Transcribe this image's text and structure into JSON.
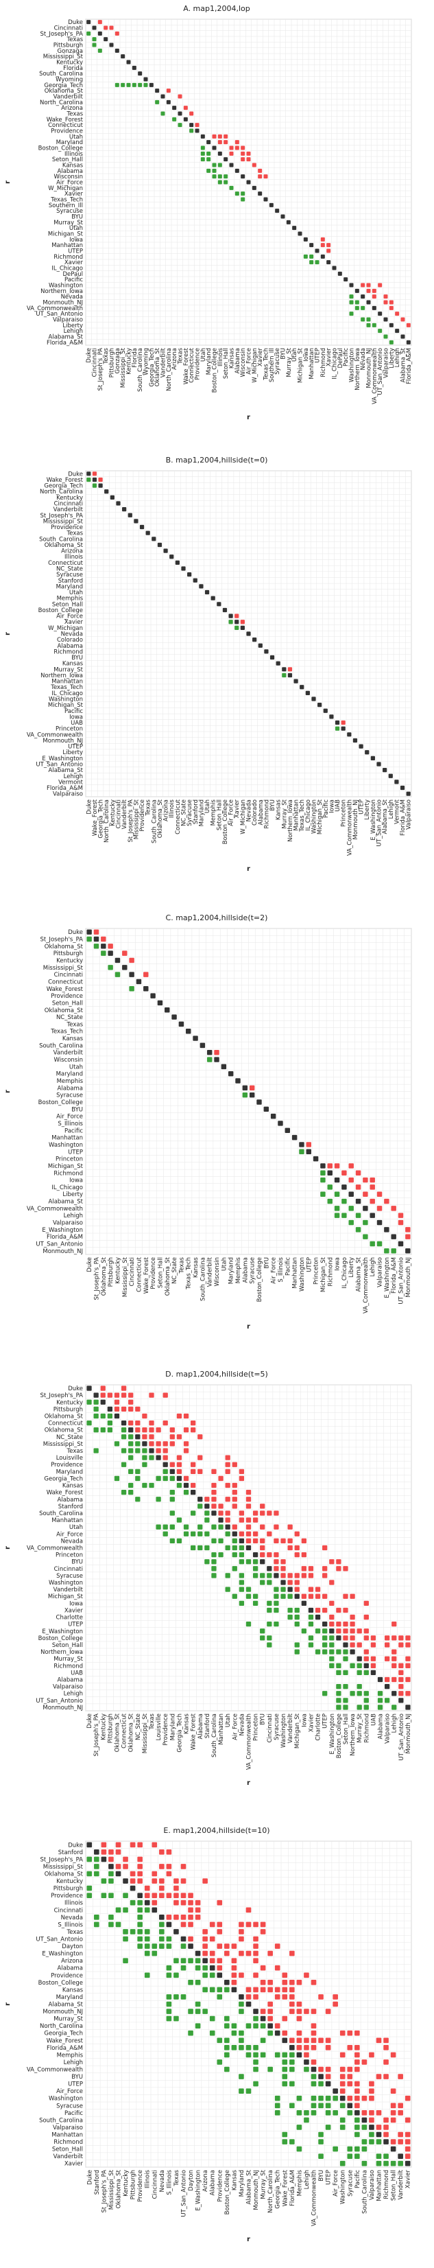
{
  "colors": {
    "diagonal": "#333333",
    "red": "#f24b4b",
    "green": "#3aa23a",
    "grid": "#e6e6e6",
    "frame": "#cccccc"
  },
  "chart_data": [
    {
      "type": "heatmap",
      "title": "A. map1,2004,lop",
      "xlabel": "r",
      "ylabel": "r",
      "teams": [
        "Duke",
        "Cincinnati",
        "St_Joseph's_PA",
        "Texas",
        "Pittsburgh",
        "Gonzaga",
        "Mississippi_St",
        "Kentucky",
        "Florida",
        "South_Carolina",
        "Wyoming",
        "Georgia_Tech",
        "Oklahoma_St",
        "Vanderbilt",
        "North_Carolina",
        "Arizona",
        "Texas",
        "Wake_Forest",
        "Connecticut",
        "Providence",
        "Utah",
        "Maryland",
        "Boston_College",
        "Illinois",
        "Seton_Hall",
        "Kansas",
        "Alabama",
        "Wisconsin",
        "Air_Force",
        "W_Michigan",
        "Xavier",
        "Texas_Tech",
        "Southern_Ill",
        "Syracuse",
        "BYU",
        "Murray_St",
        "Utah",
        "Michigan_St",
        "Iowa",
        "Manhattan",
        "UTEP",
        "Richmond",
        "Xavier",
        "IL_Chicago",
        "DePaul",
        "Pacific",
        "Washington",
        "Northern_Iowa",
        "Nevada",
        "Monmouth_NJ",
        "VA_Commonwealth",
        "UT_San_Antonio",
        "Valparaiso",
        "Liberty",
        "Lehigh",
        "Alabama_St",
        "Florida_A&M"
      ],
      "red_pairs": [
        [
          0,
          2
        ],
        [
          1,
          3
        ],
        [
          1,
          4
        ],
        [
          2,
          5
        ],
        [
          12,
          14
        ],
        [
          13,
          16
        ],
        [
          15,
          17
        ],
        [
          16,
          18
        ],
        [
          18,
          19
        ],
        [
          20,
          22
        ],
        [
          20,
          23
        ],
        [
          20,
          24
        ],
        [
          21,
          23
        ],
        [
          21,
          24
        ],
        [
          21,
          26
        ],
        [
          22,
          25
        ],
        [
          22,
          26
        ],
        [
          22,
          27
        ],
        [
          23,
          25
        ],
        [
          23,
          27
        ],
        [
          23,
          28
        ],
        [
          24,
          27
        ],
        [
          24,
          28
        ],
        [
          25,
          29
        ],
        [
          26,
          30
        ],
        [
          27,
          30
        ],
        [
          27,
          31
        ],
        [
          38,
          41
        ],
        [
          39,
          41
        ],
        [
          39,
          42
        ],
        [
          40,
          42
        ],
        [
          46,
          48
        ],
        [
          46,
          49
        ],
        [
          46,
          51
        ],
        [
          47,
          49
        ],
        [
          47,
          50
        ],
        [
          48,
          50
        ],
        [
          48,
          52
        ],
        [
          49,
          52
        ],
        [
          49,
          53
        ],
        [
          50,
          53
        ],
        [
          51,
          54
        ],
        [
          52,
          55
        ],
        [
          53,
          56
        ]
      ],
      "green_pairs": [
        [
          2,
          0
        ],
        [
          3,
          1
        ],
        [
          4,
          1
        ],
        [
          5,
          2
        ],
        [
          14,
          12
        ],
        [
          16,
          13
        ],
        [
          17,
          15
        ],
        [
          18,
          16
        ],
        [
          19,
          18
        ],
        [
          22,
          20
        ],
        [
          23,
          20
        ],
        [
          24,
          20
        ],
        [
          23,
          21
        ],
        [
          24,
          21
        ],
        [
          26,
          21
        ],
        [
          25,
          22
        ],
        [
          26,
          22
        ],
        [
          27,
          22
        ],
        [
          25,
          23
        ],
        [
          27,
          23
        ],
        [
          28,
          23
        ],
        [
          27,
          24
        ],
        [
          28,
          24
        ],
        [
          29,
          25
        ],
        [
          30,
          26
        ],
        [
          30,
          27
        ],
        [
          31,
          27
        ],
        [
          41,
          38
        ],
        [
          41,
          39
        ],
        [
          42,
          39
        ],
        [
          42,
          40
        ],
        [
          48,
          46
        ],
        [
          49,
          46
        ],
        [
          51,
          46
        ],
        [
          49,
          47
        ],
        [
          50,
          47
        ],
        [
          50,
          48
        ],
        [
          52,
          48
        ],
        [
          52,
          49
        ],
        [
          53,
          49
        ],
        [
          53,
          50
        ],
        [
          54,
          51
        ],
        [
          55,
          52
        ],
        [
          56,
          53
        ],
        [
          11,
          5
        ],
        [
          11,
          6
        ],
        [
          11,
          7
        ],
        [
          11,
          8
        ],
        [
          11,
          9
        ],
        [
          11,
          10
        ]
      ]
    },
    {
      "type": "heatmap",
      "title": "B. map1,2004,hillside(t=0)",
      "xlabel": "r",
      "ylabel": "r",
      "teams": [
        "Duke",
        "Wake_Forest",
        "Georgia_Tech",
        "North_Carolina",
        "Kentucky",
        "Cincinnati",
        "Vanderbilt",
        "St_Joseph's_PA",
        "Mississippi_St",
        "Providence",
        "Texas",
        "South_Carolina",
        "Oklahoma_St",
        "Arizona",
        "Illinois",
        "Connecticut",
        "NC_State",
        "Syracuse",
        "Stanford",
        "Maryland",
        "Utah",
        "Memphis",
        "Seton_Hall",
        "Boston_College",
        "Air_Force",
        "Xavier",
        "W_Michigan",
        "Nevada",
        "Colorado",
        "Alabama",
        "Richmond",
        "BYU",
        "Kansas",
        "Murray_St",
        "Northern_Iowa",
        "Manhattan",
        "Texas_Tech",
        "IL_Chicago",
        "Washington",
        "Michigan_St",
        "Pacific",
        "Iowa",
        "UAB",
        "Princeton",
        "VA_Commonwealth",
        "Monmouth_NJ",
        "UTEP",
        "Liberty",
        "E_Washington",
        "UT_San_Antonio",
        "Alabama_St",
        "Lehigh",
        "Vermont",
        "Florida_A&M",
        "Valparaiso"
      ],
      "red_pairs": [
        [
          0,
          1
        ],
        [
          1,
          2
        ],
        [
          24,
          25
        ],
        [
          25,
          26
        ],
        [
          33,
          34
        ],
        [
          42,
          43
        ]
      ],
      "green_pairs": [
        [
          1,
          0
        ],
        [
          2,
          1
        ],
        [
          25,
          24
        ],
        [
          26,
          25
        ],
        [
          34,
          33
        ],
        [
          43,
          42
        ]
      ]
    },
    {
      "type": "heatmap",
      "title": "C. map1,2004,hillside(t=2)",
      "xlabel": "r",
      "ylabel": "r",
      "teams": [
        "Duke",
        "St_Joseph's_PA",
        "Oklahoma_St",
        "Pittsburgh",
        "Kentucky",
        "Mississippi_St",
        "Cincinnati",
        "Connecticut",
        "Wake_Forest",
        "Providence",
        "Seton_Hall",
        "Oklahoma_St",
        "NC_State",
        "Texas",
        "Texas_Tech",
        "Kansas",
        "South_Carolina",
        "Vanderbilt",
        "Wisconsin",
        "Utah",
        "Maryland",
        "Memphis",
        "Alabama",
        "Syracuse",
        "Boston_College",
        "BYU",
        "Air_Force",
        "S_Illinois",
        "Pacific",
        "Manhattan",
        "Washington",
        "UTEP",
        "Princeton",
        "Michigan_St",
        "Richmond",
        "Iowa",
        "IL_Chicago",
        "Liberty",
        "Alabama_St",
        "VA_Commonwealth",
        "Lehigh",
        "Valparaiso",
        "E_Washington",
        "Florida_A&M",
        "UT_San_Antonio",
        "Monmouth_NJ"
      ],
      "red_pairs": [
        [
          0,
          1
        ],
        [
          1,
          2
        ],
        [
          2,
          3
        ],
        [
          3,
          5
        ],
        [
          4,
          6
        ],
        [
          6,
          8
        ],
        [
          17,
          18
        ],
        [
          22,
          23
        ],
        [
          30,
          31
        ],
        [
          33,
          34
        ],
        [
          33,
          35
        ],
        [
          33,
          37
        ],
        [
          34,
          36
        ],
        [
          34,
          38
        ],
        [
          35,
          37
        ],
        [
          35,
          39
        ],
        [
          36,
          38
        ],
        [
          36,
          40
        ],
        [
          37,
          39
        ],
        [
          37,
          41
        ],
        [
          38,
          40
        ],
        [
          38,
          42
        ],
        [
          39,
          43
        ],
        [
          40,
          44
        ],
        [
          41,
          44
        ],
        [
          42,
          45
        ],
        [
          43,
          45
        ],
        [
          39,
          41
        ],
        [
          35,
          40
        ]
      ],
      "green_pairs": [
        [
          1,
          0
        ],
        [
          2,
          1
        ],
        [
          3,
          2
        ],
        [
          5,
          3
        ],
        [
          6,
          4
        ],
        [
          8,
          6
        ],
        [
          18,
          17
        ],
        [
          23,
          22
        ],
        [
          31,
          30
        ],
        [
          34,
          33
        ],
        [
          35,
          33
        ],
        [
          37,
          33
        ],
        [
          36,
          34
        ],
        [
          38,
          34
        ],
        [
          37,
          35
        ],
        [
          39,
          35
        ],
        [
          38,
          36
        ],
        [
          40,
          36
        ],
        [
          39,
          37
        ],
        [
          41,
          37
        ],
        [
          40,
          38
        ],
        [
          42,
          38
        ],
        [
          43,
          39
        ],
        [
          44,
          40
        ],
        [
          44,
          41
        ],
        [
          45,
          42
        ],
        [
          45,
          43
        ],
        [
          41,
          39
        ],
        [
          40,
          35
        ]
      ]
    },
    {
      "type": "heatmap",
      "title": "D. map1,2004,hillside(t=5)",
      "xlabel": "r",
      "ylabel": "r",
      "teams": [
        "Duke",
        "St_Joseph's_PA",
        "Kentucky",
        "Pittsburgh",
        "Oklahoma_St",
        "Connecticut",
        "Oklahoma_St",
        "NC_State",
        "Mississippi_St",
        "Texas",
        "Louisville",
        "Providence",
        "Maryland",
        "Georgia_Tech",
        "Kansas",
        "Wake_Forest",
        "Alabama",
        "Stanford",
        "South_Carolina",
        "Manhattan",
        "Utah",
        "Air_Force",
        "Nevada",
        "VA_Commonwealth",
        "Princeton",
        "BYU",
        "Cincinnati",
        "Syracuse",
        "Washington",
        "Vanderbilt",
        "Michigan_St",
        "Iowa",
        "Xavier",
        "Charlotte",
        "UTEP",
        "E_Washington",
        "Boston_College",
        "Seton_Hall",
        "Northern_Iowa",
        "Murray_St",
        "Richmond",
        "UAB",
        "Alabama",
        "Valparaiso",
        "Lehigh",
        "UT_San_Antonio",
        "Monmouth_NJ"
      ],
      "band_width": 11,
      "band_fill": 0.7
    },
    {
      "type": "heatmap",
      "title": "E. map1,2004,hillside(t=10)",
      "xlabel": "r",
      "ylabel": "r",
      "teams": [
        "Duke",
        "Stanford",
        "St_Joseph's_PA",
        "Mississippi_St",
        "Oklahoma_St",
        "Kentucky",
        "Pittsburgh",
        "Providence",
        "Illinois",
        "Cincinnati",
        "Nevada",
        "S_Illinois",
        "Texas",
        "UT_San_Antonio",
        "Dayton",
        "E_Washington",
        "Arizona",
        "Alabama",
        "Providence",
        "Boston_College",
        "Kansas",
        "Maryland",
        "Alabama_St",
        "Monmouth_NJ",
        "Murray_St",
        "North_Carolina",
        "Georgia_Tech",
        "Wake_Forest",
        "Florida_A&M",
        "Memphis",
        "Lehigh",
        "VA_Commonwealth",
        "BYU",
        "UTEP",
        "Air_Force",
        "Washington",
        "Syracuse",
        "Pacific",
        "South_Carolina",
        "Valparaiso",
        "Manhattan",
        "Richmond",
        "Seton_Hall",
        "Vanderbilt",
        "Xavier"
      ],
      "band_width": 14,
      "band_fill": 0.62
    }
  ]
}
